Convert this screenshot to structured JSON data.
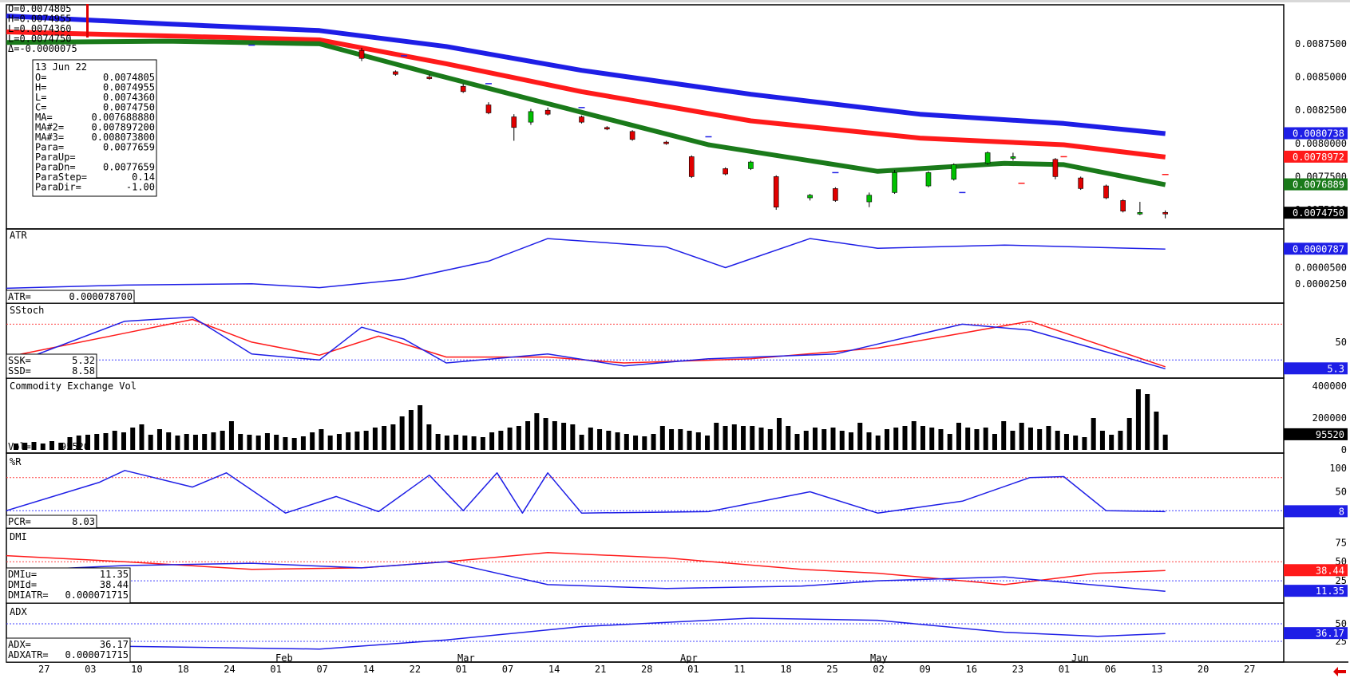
{
  "colors": {
    "ma1": "#1a7a1a",
    "ma2": "#ff1a1a",
    "ma3": "#1e1ee6",
    "up_candle": "#00c000",
    "down_candle": "#e00000",
    "blue_line": "#1e1ee6",
    "red_line": "#ff1a1a",
    "vol_bar": "#000000",
    "price_tag_blue": "#1e1ee6",
    "price_tag_red": "#ff1a1a",
    "price_tag_green": "#1a7a1a",
    "price_tag_black": "#000000",
    "bottom_arrow": "#e00000"
  },
  "top_left_header": [
    "O=0.0074805",
    "H=0.0074955",
    "L=0.0074360",
    "L=0.0074750",
    "Δ=-0.0000075"
  ],
  "info_box": {
    "date": "13 Jun 22",
    "rows": [
      [
        "O=",
        "0.0074805"
      ],
      [
        "H=",
        "0.0074955"
      ],
      [
        "L=",
        "0.0074360"
      ],
      [
        "C=",
        "0.0074750"
      ],
      [
        "MA=",
        "0.007688880"
      ],
      [
        "MA#2=",
        "0.007897200"
      ],
      [
        "MA#3=",
        "0.008073800"
      ],
      [
        "Para=",
        "0.0077659"
      ],
      [
        "ParaUp=",
        ""
      ],
      [
        "ParaDn=",
        "0.0077659"
      ],
      [
        "ParaStep=",
        "0.14"
      ],
      [
        "ParaDir=",
        "-1.00"
      ]
    ]
  },
  "price_panel": {
    "ticks": [
      "0.0087500",
      "0.0085000",
      "0.0082500",
      "0.0080000",
      "0.0077500",
      "0.0075000"
    ],
    "tags": [
      {
        "text": "0.0080738",
        "kind": "blue",
        "value": 0.0080738
      },
      {
        "text": "0.0078972",
        "kind": "red",
        "value": 0.0078972
      },
      {
        "text": "0.0076889",
        "kind": "green",
        "value": 0.0076889
      },
      {
        "text": "0.0074750",
        "kind": "black",
        "value": 0.007475
      }
    ]
  },
  "atr_panel": {
    "title": "ATR",
    "readout_label": "ATR=",
    "readout_value": "0.000078700",
    "ticks": [
      "0.0000500",
      "0.0000250"
    ],
    "tag": "0.0000787"
  },
  "sstoch_panel": {
    "title": "SStoch",
    "rows": [
      [
        "SSK=",
        "5.32"
      ],
      [
        "SSD=",
        "8.58"
      ]
    ],
    "ticks": [
      "50"
    ],
    "tag": "5.3"
  },
  "vol_panel": {
    "title": "Commodity Exchange Vol",
    "readout_label": "Vol=",
    "readout_value": "95520",
    "ticks": [
      "400000",
      "200000",
      "0"
    ],
    "tag": "95520"
  },
  "wr_panel": {
    "title": "%R",
    "readout_label": "PCR=",
    "readout_value": "8.03",
    "ticks": [
      "100",
      "50"
    ],
    "tag": "8"
  },
  "dmi_panel": {
    "title": "DMI",
    "rows": [
      [
        "DMIu=",
        "11.35"
      ],
      [
        "DMId=",
        "38.44"
      ],
      [
        "DMIATR=",
        "0.000071715"
      ]
    ],
    "ticks": [
      "75",
      "50",
      "25"
    ],
    "tags": [
      {
        "text": "38.44",
        "kind": "red"
      },
      {
        "text": "11.35",
        "kind": "blue"
      }
    ]
  },
  "adx_panel": {
    "title": "ADX",
    "rows": [
      [
        "ADX=",
        "36.17"
      ],
      [
        "ADXATR=",
        "0.000071715"
      ]
    ],
    "ticks": [
      "50",
      "25"
    ],
    "tag": "36.17"
  },
  "x_axis": {
    "months": [
      "Feb",
      "Mar",
      "Apr",
      "May",
      "Jun"
    ],
    "days": [
      "27",
      "03",
      "10",
      "18",
      "24",
      "01",
      "07",
      "14",
      "22",
      "01",
      "07",
      "14",
      "21",
      "28",
      "01",
      "11",
      "18",
      "25",
      "02",
      "09",
      "16",
      "23",
      "01",
      "06",
      "13",
      "20",
      "27"
    ]
  },
  "chart_data": {
    "type": "line",
    "title": "",
    "x_start": "2022-01-27",
    "x_end": "2022-06-27",
    "candles": [
      {
        "x": "2022-03-10",
        "o": 0.0087,
        "h": 0.00872,
        "l": 0.00862,
        "c": 0.00864
      },
      {
        "x": "2022-03-14",
        "o": 0.00854,
        "h": 0.00855,
        "l": 0.00851,
        "c": 0.00852
      },
      {
        "x": "2022-03-18",
        "o": 0.0085,
        "h": 0.00852,
        "l": 0.00848,
        "c": 0.00849
      },
      {
        "x": "2022-03-22",
        "o": 0.00843,
        "h": 0.00845,
        "l": 0.00838,
        "c": 0.00839
      },
      {
        "x": "2022-03-25",
        "o": 0.00829,
        "h": 0.00831,
        "l": 0.00822,
        "c": 0.00823
      },
      {
        "x": "2022-03-28",
        "o": 0.0082,
        "h": 0.00822,
        "l": 0.00802,
        "c": 0.00812
      },
      {
        "x": "2022-03-30",
        "o": 0.00816,
        "h": 0.00826,
        "l": 0.00814,
        "c": 0.00824
      },
      {
        "x": "2022-04-01",
        "o": 0.00825,
        "h": 0.00827,
        "l": 0.00821,
        "c": 0.00822
      },
      {
        "x": "2022-04-05",
        "o": 0.0082,
        "h": 0.00821,
        "l": 0.00815,
        "c": 0.00816
      },
      {
        "x": "2022-04-08",
        "o": 0.00812,
        "h": 0.00813,
        "l": 0.0081,
        "c": 0.00811
      },
      {
        "x": "2022-04-11",
        "o": 0.00809,
        "h": 0.0081,
        "l": 0.00802,
        "c": 0.00803
      },
      {
        "x": "2022-04-15",
        "o": 0.00801,
        "h": 0.00802,
        "l": 0.00799,
        "c": 0.008
      },
      {
        "x": "2022-04-18",
        "o": 0.0079,
        "h": 0.00791,
        "l": 0.00774,
        "c": 0.00775
      },
      {
        "x": "2022-04-22",
        "o": 0.00781,
        "h": 0.00782,
        "l": 0.00776,
        "c": 0.00777
      },
      {
        "x": "2022-04-25",
        "o": 0.00781,
        "h": 0.00787,
        "l": 0.0078,
        "c": 0.00786
      },
      {
        "x": "2022-04-28",
        "o": 0.00775,
        "h": 0.00776,
        "l": 0.0075,
        "c": 0.00752
      },
      {
        "x": "2022-05-02",
        "o": 0.00759,
        "h": 0.00762,
        "l": 0.00757,
        "c": 0.00761
      },
      {
        "x": "2022-05-05",
        "o": 0.00766,
        "h": 0.00767,
        "l": 0.00756,
        "c": 0.00757
      },
      {
        "x": "2022-05-09",
        "o": 0.00756,
        "h": 0.00763,
        "l": 0.00752,
        "c": 0.00761
      },
      {
        "x": "2022-05-12",
        "o": 0.00763,
        "h": 0.0078,
        "l": 0.00762,
        "c": 0.00778
      },
      {
        "x": "2022-05-16",
        "o": 0.00768,
        "h": 0.00779,
        "l": 0.00767,
        "c": 0.00778
      },
      {
        "x": "2022-05-19",
        "o": 0.00773,
        "h": 0.00785,
        "l": 0.00772,
        "c": 0.00784
      },
      {
        "x": "2022-05-23",
        "o": 0.00785,
        "h": 0.00794,
        "l": 0.00784,
        "c": 0.00793
      },
      {
        "x": "2022-05-26",
        "o": 0.00789,
        "h": 0.00793,
        "l": 0.00787,
        "c": 0.0079
      },
      {
        "x": "2022-05-31",
        "o": 0.00788,
        "h": 0.00789,
        "l": 0.00773,
        "c": 0.00775
      },
      {
        "x": "2022-06-03",
        "o": 0.00774,
        "h": 0.00775,
        "l": 0.00765,
        "c": 0.00766
      },
      {
        "x": "2022-06-06",
        "o": 0.00768,
        "h": 0.00769,
        "l": 0.00758,
        "c": 0.00759
      },
      {
        "x": "2022-06-08",
        "o": 0.00757,
        "h": 0.00758,
        "l": 0.00748,
        "c": 0.00749
      },
      {
        "x": "2022-06-10",
        "o": 0.00748,
        "h": 0.00756,
        "l": 0.00746,
        "c": 0.00748
      },
      {
        "x": "2022-06-13",
        "o": 0.0074805,
        "h": 0.0074955,
        "l": 0.007436,
        "c": 0.007475
      }
    ],
    "ma_blue": [
      [
        "2022-01-27",
        0.00896
      ],
      [
        "2022-02-15",
        0.0089
      ],
      [
        "2022-03-05",
        0.00885
      ],
      [
        "2022-03-20",
        0.00873
      ],
      [
        "2022-04-05",
        0.00855
      ],
      [
        "2022-04-25",
        0.00837
      ],
      [
        "2022-05-15",
        0.00822
      ],
      [
        "2022-06-01",
        0.00815
      ],
      [
        "2022-06-13",
        0.0080738
      ]
    ],
    "ma_red": [
      [
        "2022-01-27",
        0.00884
      ],
      [
        "2022-02-15",
        0.00881
      ],
      [
        "2022-03-05",
        0.00878
      ],
      [
        "2022-03-20",
        0.0086
      ],
      [
        "2022-04-05",
        0.00839
      ],
      [
        "2022-04-25",
        0.00817
      ],
      [
        "2022-05-15",
        0.00804
      ],
      [
        "2022-06-01",
        0.00799
      ],
      [
        "2022-06-13",
        0.0078972
      ]
    ],
    "ma_green": [
      [
        "2022-01-27",
        0.00876
      ],
      [
        "2022-02-15",
        0.00877
      ],
      [
        "2022-03-05",
        0.00875
      ],
      [
        "2022-03-18",
        0.00853
      ],
      [
        "2022-04-01",
        0.0083
      ],
      [
        "2022-04-20",
        0.00799
      ],
      [
        "2022-05-10",
        0.00779
      ],
      [
        "2022-05-25",
        0.00785
      ],
      [
        "2022-06-01",
        0.00784
      ],
      [
        "2022-06-13",
        0.0076889
      ]
    ],
    "sar": [
      [
        "2022-02-01",
        0.00862
      ],
      [
        "2022-02-25",
        0.00874
      ],
      [
        "2022-03-15",
        0.00866
      ],
      [
        "2022-03-25",
        0.00845
      ],
      [
        "2022-04-05",
        0.00827
      ],
      [
        "2022-04-20",
        0.00805
      ],
      [
        "2022-05-05",
        0.00778
      ],
      [
        "2022-05-20",
        0.00763
      ],
      [
        "2022-05-27",
        0.0077
      ],
      [
        "2022-06-01",
        0.0079
      ],
      [
        "2022-06-13",
        0.0077659
      ]
    ],
    "atr": [
      [
        "2022-01-27",
        1.8e-05
      ],
      [
        "2022-02-10",
        2.3e-05
      ],
      [
        "2022-02-25",
        2.5e-05
      ],
      [
        "2022-03-05",
        1.9e-05
      ],
      [
        "2022-03-15",
        3.2e-05
      ],
      [
        "2022-03-25",
        6e-05
      ],
      [
        "2022-04-01",
        9.5e-05
      ],
      [
        "2022-04-15",
        8.2e-05
      ],
      [
        "2022-04-22",
        5e-05
      ],
      [
        "2022-05-02",
        9.5e-05
      ],
      [
        "2022-05-10",
        8e-05
      ],
      [
        "2022-05-25",
        8.5e-05
      ],
      [
        "2022-06-13",
        7.87e-05
      ]
    ],
    "sstoch_k": [
      [
        "2022-01-27",
        10
      ],
      [
        "2022-02-10",
        85
      ],
      [
        "2022-02-18",
        92
      ],
      [
        "2022-02-25",
        30
      ],
      [
        "2022-03-05",
        20
      ],
      [
        "2022-03-10",
        75
      ],
      [
        "2022-03-15",
        55
      ],
      [
        "2022-03-20",
        15
      ],
      [
        "2022-04-01",
        30
      ],
      [
        "2022-04-10",
        10
      ],
      [
        "2022-04-20",
        22
      ],
      [
        "2022-05-05",
        30
      ],
      [
        "2022-05-20",
        80
      ],
      [
        "2022-05-28",
        70
      ],
      [
        "2022-06-13",
        5.32
      ]
    ],
    "sstoch_d": [
      [
        "2022-01-27",
        25
      ],
      [
        "2022-02-10",
        65
      ],
      [
        "2022-02-18",
        88
      ],
      [
        "2022-02-25",
        50
      ],
      [
        "2022-03-05",
        28
      ],
      [
        "2022-03-12",
        60
      ],
      [
        "2022-03-20",
        25
      ],
      [
        "2022-04-01",
        25
      ],
      [
        "2022-04-10",
        15
      ],
      [
        "2022-04-25",
        22
      ],
      [
        "2022-05-10",
        40
      ],
      [
        "2022-05-28",
        85
      ],
      [
        "2022-06-13",
        8.58
      ]
    ],
    "volume": [
      40000,
      45000,
      50000,
      40000,
      55000,
      45000,
      80000,
      90000,
      95000,
      100000,
      105000,
      120000,
      110000,
      140000,
      160000,
      95000,
      130000,
      110000,
      90000,
      100000,
      95000,
      100000,
      110000,
      120000,
      180000,
      100000,
      95000,
      90000,
      105000,
      95000,
      80000,
      75000,
      85000,
      110000,
      130000,
      90000,
      100000,
      110000,
      115000,
      120000,
      140000,
      150000,
      160000,
      210000,
      250000,
      280000,
      160000,
      100000,
      90000,
      95000,
      90000,
      85000,
      80000,
      110000,
      120000,
      140000,
      150000,
      180000,
      230000,
      200000,
      180000,
      170000,
      160000,
      95000,
      140000,
      130000,
      120000,
      110000,
      100000,
      90000,
      85000,
      100000,
      150000,
      130000,
      130000,
      120000,
      110000,
      90000,
      170000,
      150000,
      160000,
      150000,
      150000,
      140000,
      130000,
      200000,
      150000,
      100000,
      120000,
      140000,
      130000,
      140000,
      120000,
      110000,
      170000,
      110000,
      90000,
      130000,
      140000,
      150000,
      180000,
      150000,
      140000,
      130000,
      100000,
      170000,
      140000,
      130000,
      140000,
      100000,
      180000,
      120000,
      170000,
      140000,
      130000,
      150000,
      120000,
      100000,
      90000,
      80000,
      200000,
      120000,
      95000,
      120000,
      200000,
      380000,
      350000,
      240000,
      95520
    ],
    "williams_r": [
      [
        "2022-01-27",
        10
      ],
      [
        "2022-02-07",
        70
      ],
      [
        "2022-02-10",
        95
      ],
      [
        "2022-02-18",
        60
      ],
      [
        "2022-02-22",
        90
      ],
      [
        "2022-03-01",
        5
      ],
      [
        "2022-03-07",
        40
      ],
      [
        "2022-03-12",
        8
      ],
      [
        "2022-03-18",
        85
      ],
      [
        "2022-03-22",
        10
      ],
      [
        "2022-03-26",
        90
      ],
      [
        "2022-03-29",
        5
      ],
      [
        "2022-04-01",
        90
      ],
      [
        "2022-04-05",
        5
      ],
      [
        "2022-04-20",
        8
      ],
      [
        "2022-05-02",
        50
      ],
      [
        "2022-05-10",
        5
      ],
      [
        "2022-05-20",
        30
      ],
      [
        "2022-05-28",
        80
      ],
      [
        "2022-06-01",
        82
      ],
      [
        "2022-06-06",
        10
      ],
      [
        "2022-06-13",
        8.03
      ]
    ],
    "dmi_up": [
      [
        "2022-01-27",
        38
      ],
      [
        "2022-02-10",
        45
      ],
      [
        "2022-02-25",
        48
      ],
      [
        "2022-03-10",
        42
      ],
      [
        "2022-03-20",
        50
      ],
      [
        "2022-04-01",
        20
      ],
      [
        "2022-04-15",
        15
      ],
      [
        "2022-05-01",
        18
      ],
      [
        "2022-05-10",
        25
      ],
      [
        "2022-05-25",
        30
      ],
      [
        "2022-06-13",
        11.35
      ]
    ],
    "dmi_down": [
      [
        "2022-01-27",
        58
      ],
      [
        "2022-02-10",
        50
      ],
      [
        "2022-02-25",
        40
      ],
      [
        "2022-03-10",
        42
      ],
      [
        "2022-03-20",
        50
      ],
      [
        "2022-04-01",
        62
      ],
      [
        "2022-04-15",
        55
      ],
      [
        "2022-05-01",
        40
      ],
      [
        "2022-05-10",
        35
      ],
      [
        "2022-05-25",
        20
      ],
      [
        "2022-06-05",
        35
      ],
      [
        "2022-06-13",
        38.44
      ]
    ],
    "adx": [
      [
        "2022-01-27",
        20
      ],
      [
        "2022-02-15",
        17
      ],
      [
        "2022-03-05",
        14
      ],
      [
        "2022-03-20",
        27
      ],
      [
        "2022-04-05",
        46
      ],
      [
        "2022-04-25",
        58
      ],
      [
        "2022-05-10",
        55
      ],
      [
        "2022-05-25",
        38
      ],
      [
        "2022-06-05",
        32
      ],
      [
        "2022-06-13",
        36.17
      ]
    ]
  }
}
